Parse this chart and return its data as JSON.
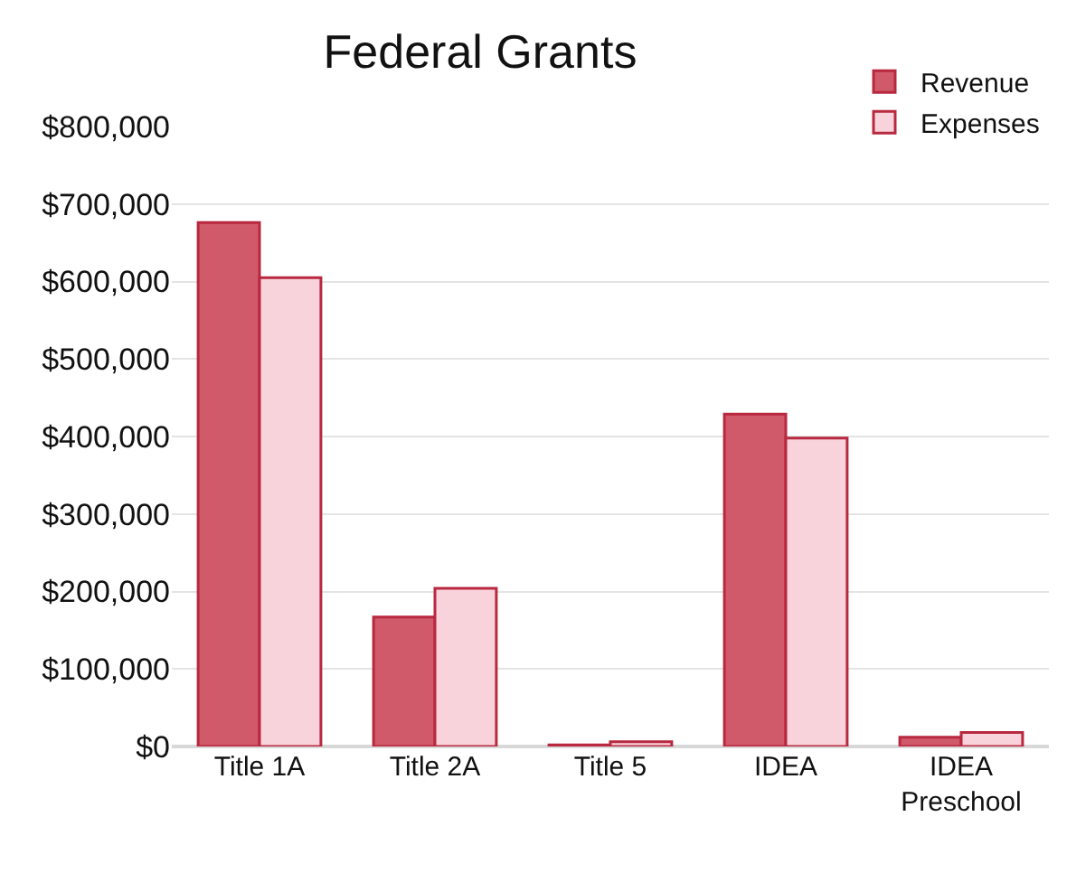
{
  "chart_data": {
    "type": "bar",
    "title": "Federal Grants",
    "categories": [
      "Title 1A",
      "Title 2A",
      "Title 5",
      "IDEA",
      "IDEA Preschool"
    ],
    "series": [
      {
        "name": "Revenue",
        "color": "#d05a6a",
        "values": [
          676000,
          167000,
          2000,
          429000,
          12000
        ]
      },
      {
        "name": "Expenses",
        "color": "#f9d3dc",
        "values": [
          605000,
          204000,
          6000,
          398000,
          18000
        ]
      }
    ],
    "ylim": [
      0,
      800000
    ],
    "yticks": [
      {
        "value": 0,
        "label": "$0"
      },
      {
        "value": 100000,
        "label": "$100,000"
      },
      {
        "value": 200000,
        "label": "$200,000"
      },
      {
        "value": 300000,
        "label": "$300,000"
      },
      {
        "value": 400000,
        "label": "$400,000"
      },
      {
        "value": 500000,
        "label": "$500,000"
      },
      {
        "value": 600000,
        "label": "$600,000"
      },
      {
        "value": 700000,
        "label": "$700,000"
      },
      {
        "value": 800000,
        "label": "$800,000"
      }
    ],
    "grid": "y",
    "legend": "top right"
  }
}
